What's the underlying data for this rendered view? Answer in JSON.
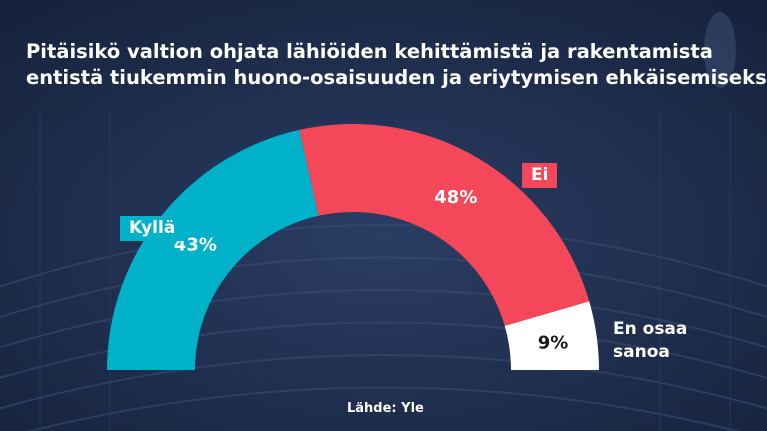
{
  "title_lines": [
    "Pitäisikö valtion ohjata lähiöiden kehittämistä ja rakentamista",
    "entistä tiukemmin huono-osaisuuden ja eriytymisen ehkäisemiseksi?"
  ],
  "source": "Lähde: Yle",
  "colors": {
    "background": "#1c2b4a",
    "kylla": "#00b2c9",
    "ei": "#f4485a",
    "en_osaa": "#ffffff"
  },
  "chart_data": {
    "type": "pie",
    "variant": "semicircle-donut",
    "title": "Pitäisikö valtion ohjata lähiöiden kehittämistä ja rakentamista entistä tiukemmin huono-osaisuuden ja eriytymisen ehkäisemiseksi?",
    "categories": [
      "Kyllä",
      "Ei",
      "En osaa sanoa"
    ],
    "values": [
      43,
      48,
      9
    ],
    "value_labels": [
      "43%",
      "48%",
      "9%"
    ],
    "label_lines": [
      [
        "Kyllä"
      ],
      [
        "Ei"
      ],
      [
        "En osaa",
        "sanoa"
      ]
    ]
  }
}
